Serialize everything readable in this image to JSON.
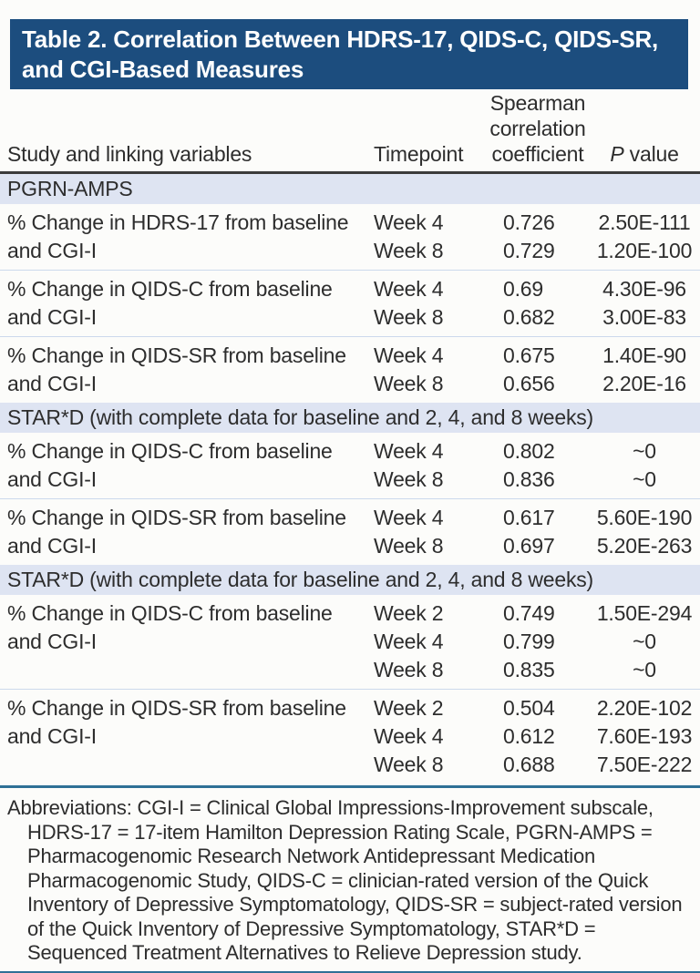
{
  "title_lines": [
    "Table 2. Correlation Between HDRS-17, QIDS-C, QIDS-SR,",
    "and CGI-Based Measures"
  ],
  "columns": {
    "study": "Study and linking variables",
    "timepoint": "Timepoint",
    "coefficient": "Spearman correlation coefficient",
    "p_italic": "P",
    "p_rest": " value"
  },
  "sections": [
    {
      "header": "PGRN-AMPS",
      "groups": [
        {
          "variable": "% Change in HDRS-17 from baseline and CGI-I",
          "rows": [
            {
              "timepoint": "Week 4",
              "coefficient": "0.726",
              "p_value": "2.50E-111"
            },
            {
              "timepoint": "Week 8",
              "coefficient": "0.729",
              "p_value": "1.20E-100"
            }
          ]
        },
        {
          "variable": "% Change in QIDS-C from baseline and CGI-I",
          "rows": [
            {
              "timepoint": "Week 4",
              "coefficient": "0.69",
              "p_value": "4.30E-96"
            },
            {
              "timepoint": "Week 8",
              "coefficient": "0.682",
              "p_value": "3.00E-83"
            }
          ]
        },
        {
          "variable": "% Change in QIDS-SR from baseline and CGI-I",
          "rows": [
            {
              "timepoint": "Week 4",
              "coefficient": "0.675",
              "p_value": "1.40E-90"
            },
            {
              "timepoint": "Week 8",
              "coefficient": "0.656",
              "p_value": "2.20E-16"
            }
          ]
        }
      ]
    },
    {
      "header": "STAR*D (with complete data for baseline and 2, 4, and 8 weeks)",
      "groups": [
        {
          "variable": "% Change in QIDS-C from baseline and CGI-I",
          "rows": [
            {
              "timepoint": "Week 4",
              "coefficient": "0.802",
              "p_value": "~0"
            },
            {
              "timepoint": "Week 8",
              "coefficient": "0.836",
              "p_value": "~0"
            }
          ]
        },
        {
          "variable": "% Change in QIDS-SR from baseline and CGI-I",
          "rows": [
            {
              "timepoint": "Week 4",
              "coefficient": "0.617",
              "p_value": "5.60E-190"
            },
            {
              "timepoint": "Week 8",
              "coefficient": "0.697",
              "p_value": "5.20E-263"
            }
          ]
        }
      ]
    },
    {
      "header": "STAR*D (with complete data for baseline and 2, 4, and 8 weeks)",
      "groups": [
        {
          "variable": "% Change in QIDS-C from baseline and CGI-I",
          "rows": [
            {
              "timepoint": "Week 2",
              "coefficient": "0.749",
              "p_value": "1.50E-294"
            },
            {
              "timepoint": "Week 4",
              "coefficient": "0.799",
              "p_value": "~0"
            },
            {
              "timepoint": "Week 8",
              "coefficient": "0.835",
              "p_value": "~0"
            }
          ]
        },
        {
          "variable": "% Change in QIDS-SR from baseline and CGI-I",
          "rows": [
            {
              "timepoint": "Week 2",
              "coefficient": "0.504",
              "p_value": "2.20E-102"
            },
            {
              "timepoint": "Week 4",
              "coefficient": "0.612",
              "p_value": "7.60E-193"
            },
            {
              "timepoint": "Week 8",
              "coefficient": "0.688",
              "p_value": "7.50E-222"
            }
          ]
        }
      ]
    }
  ],
  "footnote": "Abbreviations: CGI-I = Clinical Global Impressions-Improvement subscale, HDRS-17 = 17-item Hamilton Depression Rating Scale, PGRN-AMPS = Pharmacogenomic Research Network Antidepressant Medication Pharmacogenomic Study, QIDS-C = clinician-rated version of the Quick Inventory of Depressive Symptomatology, QIDS-SR = subject-rated version of the Quick Inventory of Depressive Symptomatology, STAR*D = Sequenced Treatment Alternatives to Relieve Depression study.",
  "colors": {
    "navy": "#1c4d7e",
    "band": "#dee4f2",
    "sep": "#ccd9ec",
    "headrule": "#3b3b3b",
    "teal": "#2f7096",
    "ink": "#2d2d2d",
    "paper": "#fcfcfa"
  }
}
